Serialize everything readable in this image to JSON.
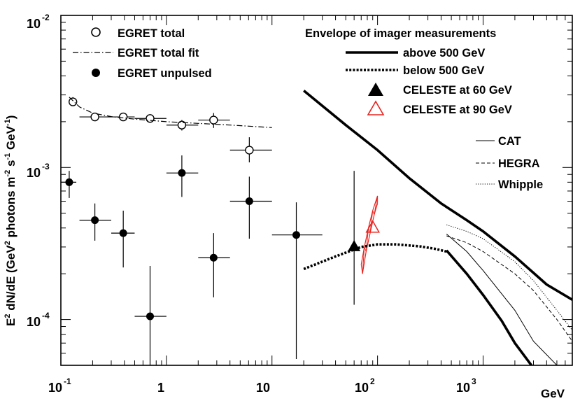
{
  "chart_data": {
    "type": "scatter",
    "title": "",
    "xlabel": "GeV",
    "ylabel": "E² dN/dE (GeV² photons m⁻² s⁻¹ GeV⁻¹)",
    "ylabel_parts": {
      "p1": "E",
      "p1_sup": "2",
      "p2": " dN/dE (GeV",
      "p2_sup": "2",
      "p3": " photons m",
      "p3_sup": "-2",
      "p4": " s",
      "p4_sup": "-1",
      "p5": " GeV",
      "p5_sup": "-1",
      "p6": ")"
    },
    "x_scale": "log",
    "y_scale": "log",
    "xlim": [
      0.1,
      7000
    ],
    "ylim": [
      5e-05,
      0.01
    ],
    "grid": false,
    "x_ticks": [
      {
        "value": 0.1,
        "base": "10",
        "exp": "-1"
      },
      {
        "value": 1,
        "base": "1",
        "exp": ""
      },
      {
        "value": 10,
        "base": "10",
        "exp": ""
      },
      {
        "value": 100,
        "base": "10",
        "exp": "2"
      },
      {
        "value": 1000,
        "base": "10",
        "exp": "3"
      }
    ],
    "y_ticks": [
      {
        "value": 0.0001,
        "base": "10",
        "exp": "-4"
      },
      {
        "value": 0.001,
        "base": "10",
        "exp": "-3"
      },
      {
        "value": 0.01,
        "base": "10",
        "exp": "-2"
      }
    ],
    "legend": {
      "placement": "top",
      "egret_total": "EGRET total",
      "egret_fit": "EGRET total fit",
      "egret_unpulsed": "EGRET unpulsed",
      "envelope_title": "Envelope of imager measurements",
      "above": "above 500 GeV",
      "below": "below 500 GeV",
      "celeste60": "CELESTE at 60 GeV",
      "celeste90": "CELESTE at 90 GeV",
      "cat": "CAT",
      "hegra": "HEGRA",
      "whipple": "Whipple"
    },
    "colors": {
      "axis": "#000000",
      "data": "#000000",
      "celeste90": "#e8231e"
    },
    "series": [
      {
        "name": "EGRET total",
        "marker": "open-circle",
        "points": [
          {
            "x": 0.13,
            "y": 0.0027,
            "xerr": [
              0.12,
              0.14
            ],
            "yerr": [
              0.00255,
              0.0029
            ]
          },
          {
            "x": 0.21,
            "y": 0.00215,
            "xerr": [
              0.15,
              0.3
            ],
            "yerr": [
              0.00205,
              0.00225
            ]
          },
          {
            "x": 0.39,
            "y": 0.00215,
            "xerr": [
              0.3,
              0.5
            ],
            "yerr": [
              0.00205,
              0.00225
            ]
          },
          {
            "x": 0.7,
            "y": 0.0021,
            "xerr": [
              0.5,
              1.0
            ],
            "yerr": [
              0.002,
              0.0022
            ]
          },
          {
            "x": 1.4,
            "y": 0.0019,
            "xerr": [
              1.0,
              2.0
            ],
            "yerr": [
              0.00175,
              0.00205
            ]
          },
          {
            "x": 2.8,
            "y": 0.00205,
            "xerr": [
              2.0,
              4.0
            ],
            "yerr": [
              0.00182,
              0.00228
            ]
          },
          {
            "x": 6.1,
            "y": 0.0013,
            "xerr": [
              4.0,
              10.0
            ],
            "yerr": [
              0.00108,
              0.00158
            ]
          }
        ]
      },
      {
        "name": "EGRET total fit",
        "style": "dashdot",
        "points": [
          [
            0.12,
            0.0029
          ],
          [
            0.15,
            0.0025
          ],
          [
            0.2,
            0.00228
          ],
          [
            0.3,
            0.00216
          ],
          [
            0.5,
            0.00208
          ],
          [
            1,
            0.002
          ],
          [
            2,
            0.00195
          ],
          [
            4,
            0.0019
          ],
          [
            10,
            0.00183
          ]
        ]
      },
      {
        "name": "EGRET unpulsed",
        "marker": "filled-circle",
        "points": [
          {
            "x": 0.12,
            "y": 0.0008,
            "xerr": [
              0.1,
              0.14
            ],
            "yerr": [
              0.00063,
              0.00095
            ]
          },
          {
            "x": 0.21,
            "y": 0.00045,
            "xerr": [
              0.15,
              0.3
            ],
            "yerr": [
              0.00033,
              0.00058
            ]
          },
          {
            "x": 0.39,
            "y": 0.00037,
            "xerr": [
              0.3,
              0.5
            ],
            "yerr": [
              0.00022,
              0.00052
            ]
          },
          {
            "x": 0.7,
            "y": 0.000105,
            "xerr": [
              0.5,
              1.0
            ],
            "yerr": [
              5e-05,
              0.000225
            ]
          },
          {
            "x": 1.4,
            "y": 0.00092,
            "xerr": [
              1.0,
              2.0
            ],
            "yerr": [
              0.00064,
              0.0012
            ]
          },
          {
            "x": 2.8,
            "y": 0.000255,
            "xerr": [
              2.0,
              4.0
            ],
            "yerr": [
              0.00014,
              0.00037
            ]
          },
          {
            "x": 6.1,
            "y": 0.0006,
            "xerr": [
              4.0,
              10.0
            ],
            "yerr": [
              0.00034,
              0.00087
            ]
          },
          {
            "x": 17,
            "y": 0.00036,
            "xerr": [
              10.0,
              30.0
            ],
            "yerr": [
              5.5e-05,
              0.00059
            ]
          }
        ]
      },
      {
        "name": "CELESTE at 60 GeV",
        "marker": "filled-triangle",
        "points": [
          {
            "x": 60,
            "y": 0.0003,
            "yerr": [
              0.000125,
              0.00095
            ]
          }
        ]
      },
      {
        "name": "CELESTE at 90 GeV",
        "marker": "open-triangle",
        "points": [
          {
            "x": 90,
            "y": 0.0004
          }
        ],
        "band": [
          [
            [
              70,
              0.00023
            ],
            [
              75,
              0.0003
            ],
            [
              82,
              0.0004
            ],
            [
              90,
              0.00052
            ],
            [
              100,
              0.00065
            ]
          ],
          [
            [
              72,
              0.0002
            ],
            [
              78,
              0.00028
            ],
            [
              85,
              0.00037
            ],
            [
              93,
              0.00049
            ],
            [
              100,
              0.00058
            ]
          ]
        ]
      },
      {
        "name": "above 500 GeV",
        "style": "thick-solid",
        "lines": [
          [
            [
              20,
              0.0032
            ],
            [
              50,
              0.0019
            ],
            [
              100,
              0.0013
            ],
            [
              200,
              0.00085
            ],
            [
              400,
              0.00058
            ],
            [
              450,
              0.00055
            ],
            [
              700,
              0.00045
            ],
            [
              1000,
              0.00038
            ],
            [
              2000,
              0.00026
            ],
            [
              4000,
              0.00017
            ],
            [
              7000,
              0.000135
            ]
          ],
          [
            [
              450,
              0.000285
            ],
            [
              700,
              0.0002
            ],
            [
              1000,
              0.000145
            ],
            [
              1500,
              9.8e-05
            ],
            [
              2000,
              7e-05
            ],
            [
              3000,
              4.8e-05
            ],
            [
              3500,
              4.3e-05
            ]
          ]
        ]
      },
      {
        "name": "below 500 GeV",
        "style": "thick-dotted",
        "lines": [
          [
            [
              20,
              0.000215
            ],
            [
              40,
              0.00026
            ],
            [
              70,
              0.0003
            ],
            [
              100,
              0.000312
            ],
            [
              150,
              0.000312
            ],
            [
              250,
              0.000303
            ],
            [
              350,
              0.000292
            ],
            [
              450,
              0.00028
            ]
          ]
        ]
      },
      {
        "name": "CAT",
        "style": "thin-solid",
        "lines": [
          [
            [
              450,
              0.000365
            ],
            [
              700,
              0.00028
            ],
            [
              1000,
              0.00021
            ],
            [
              2000,
              0.000115
            ],
            [
              3000,
              7.2e-05
            ],
            [
              5000,
              5e-05
            ]
          ]
        ]
      },
      {
        "name": "HEGRA",
        "style": "dashed",
        "lines": [
          [
            [
              450,
              0.000355
            ],
            [
              700,
              0.00032
            ],
            [
              1000,
              0.00028
            ],
            [
              2000,
              0.0002
            ],
            [
              3000,
              0.000155
            ],
            [
              5000,
              0.0001
            ],
            [
              7000,
              7.2e-05
            ]
          ]
        ]
      },
      {
        "name": "Whipple",
        "style": "dotted",
        "lines": [
          [
            [
              450,
              0.00042
            ],
            [
              700,
              0.00038
            ],
            [
              1000,
              0.00034
            ],
            [
              2000,
              0.00024
            ],
            [
              3000,
              0.00018
            ],
            [
              5000,
              0.000115
            ],
            [
              7000,
              8.5e-05
            ]
          ]
        ]
      }
    ]
  }
}
